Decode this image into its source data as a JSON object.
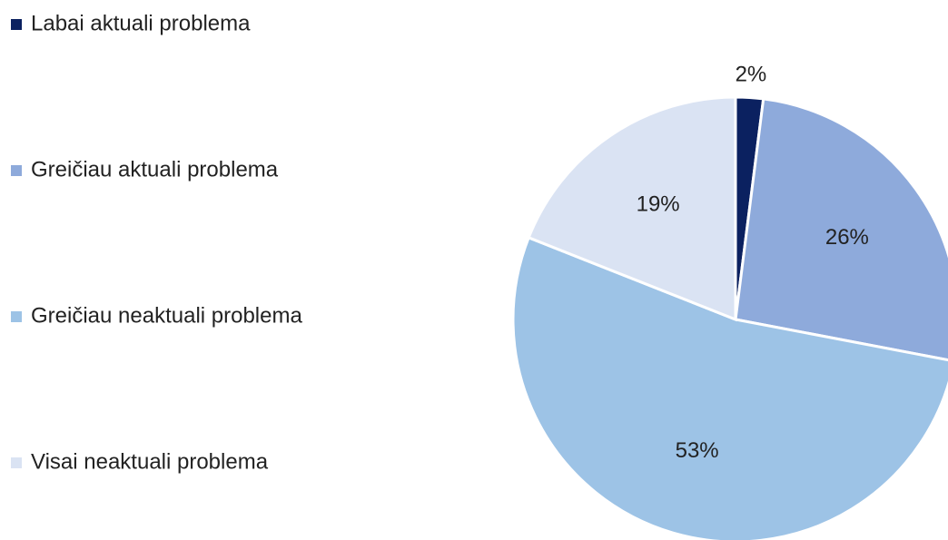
{
  "chart_data": {
    "type": "pie",
    "categories": [
      "Labai aktuali problema",
      "Greičiau aktuali problema",
      "Greičiau neaktuali problema",
      "Visai neaktuali problema"
    ],
    "values": [
      2,
      26,
      53,
      19
    ],
    "value_labels": [
      "2%",
      "26%",
      "53%",
      "19%"
    ],
    "colors": [
      "#0b2160",
      "#8eaadb",
      "#9dc3e6",
      "#dae3f3"
    ],
    "legend": "left"
  }
}
